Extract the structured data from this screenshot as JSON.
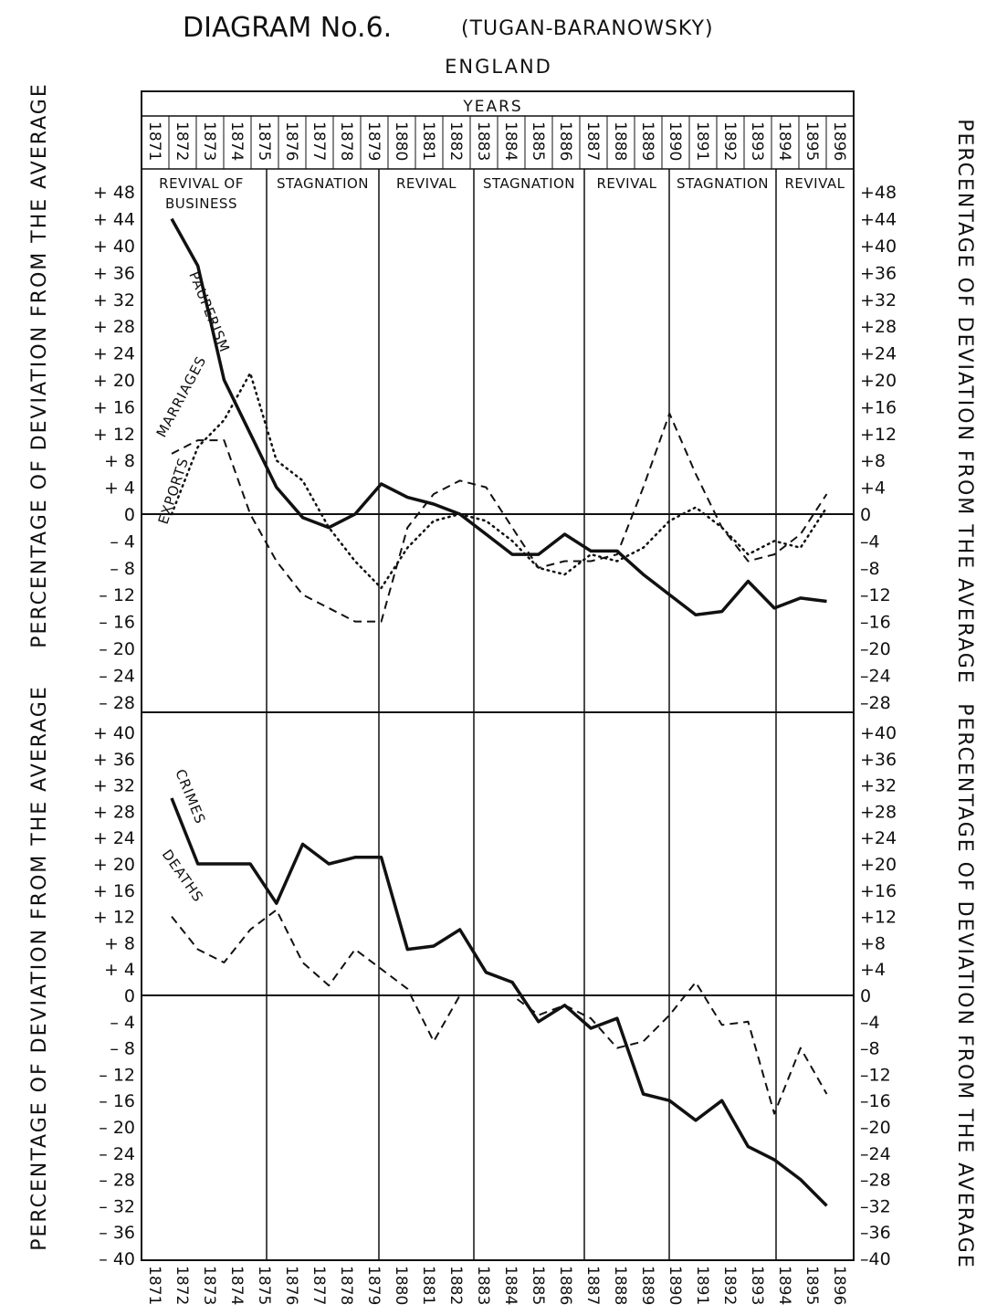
{
  "chart_data": [
    {
      "type": "line",
      "title": "DIAGRAM No.6.",
      "subtitle_author": "(TUGAN-BARANOWSKY)",
      "subtitle": "ENGLAND",
      "x_header": "YEARS",
      "ylabel_left": "PERCENTAGE OF DEVIATION FROM THE AVERAGE",
      "ylabel_right": "PERCENTAGE OF DEVIATION FROM THE AVERAGE",
      "ylim": [
        -28,
        48
      ],
      "yticks": [
        48,
        44,
        40,
        36,
        32,
        28,
        24,
        20,
        16,
        12,
        8,
        4,
        0,
        -4,
        -8,
        -12,
        -16,
        -20,
        -24,
        -28
      ],
      "x": [
        1871,
        1872,
        1873,
        1874,
        1875,
        1876,
        1877,
        1878,
        1879,
        1880,
        1881,
        1882,
        1883,
        1884,
        1885,
        1886,
        1887,
        1888,
        1889,
        1890,
        1891,
        1892,
        1893,
        1894,
        1895,
        1896
      ],
      "periods": [
        {
          "label": "REVIVAL OF BUSINESS",
          "from": 1871,
          "to": 1874
        },
        {
          "label": "STAGNATION",
          "from": 1875,
          "to": 1878
        },
        {
          "label": "REVIVAL",
          "from": 1879,
          "to": 1882
        },
        {
          "label": "STAGNATION",
          "from": 1883,
          "to": 1886
        },
        {
          "label": "REVIVAL",
          "from": 1887,
          "to": 1889
        },
        {
          "label": "STAGNATION",
          "from": 1890,
          "to": 1893
        },
        {
          "label": "REVIVAL",
          "from": 1894,
          "to": 1896
        }
      ],
      "series": [
        {
          "name": "PAUPERISM",
          "style": "solid-thick",
          "values": [
            44,
            37,
            20,
            12,
            4,
            -0.5,
            -2,
            0,
            4.5,
            2.5,
            1.5,
            0,
            -3,
            -6,
            -6,
            -3,
            -5.5,
            -5.5,
            -9,
            -12,
            -15,
            -14.5,
            -10,
            -14,
            -12.5,
            -13
          ]
        },
        {
          "name": "MARRIAGES",
          "style": "dotted",
          "values": [
            0,
            10,
            14,
            21,
            8,
            5,
            -2,
            -7,
            -11,
            -5,
            -1,
            0,
            -1,
            -4,
            -8,
            -9,
            -6,
            -7,
            -5,
            -1,
            1,
            -2,
            -6,
            -4,
            -5,
            1
          ]
        },
        {
          "name": "EXPORTS",
          "style": "dashed",
          "values": [
            9,
            11,
            11,
            0,
            -7,
            -12,
            -14,
            -16,
            -16,
            -2,
            3,
            5,
            4,
            -2,
            -8,
            -7,
            -7,
            -6,
            4,
            15,
            6,
            -2,
            -7,
            -6,
            -3,
            3
          ]
        }
      ]
    },
    {
      "type": "line",
      "ylabel_left": "PERCENTAGE OF DEVIATION FROM THE AVERAGE",
      "ylabel_right": "PERCENTAGE OF DEVIATION FROM THE AVERAGE",
      "ylim": [
        -40,
        40
      ],
      "yticks": [
        40,
        36,
        32,
        28,
        24,
        20,
        16,
        12,
        8,
        4,
        0,
        -4,
        -8,
        -12,
        -16,
        -20,
        -24,
        -28,
        -32,
        -36,
        -40
      ],
      "x": [
        1871,
        1872,
        1873,
        1874,
        1875,
        1876,
        1877,
        1878,
        1879,
        1880,
        1881,
        1882,
        1883,
        1884,
        1885,
        1886,
        1887,
        1888,
        1889,
        1890,
        1891,
        1892,
        1893,
        1894,
        1895,
        1896
      ],
      "series": [
        {
          "name": "CRIMES",
          "style": "solid-thick",
          "values": [
            30,
            20,
            20,
            20,
            14,
            23,
            20,
            21,
            21,
            7,
            7.5,
            10,
            3.5,
            2,
            -4,
            -1.5,
            -5,
            -3.5,
            -15,
            -16,
            -19,
            -16,
            -23,
            -25,
            -28,
            -32
          ]
        },
        {
          "name": "DEATHS",
          "style": "dashed",
          "values": [
            12,
            7,
            5,
            10,
            13,
            5,
            1.5,
            7,
            4,
            1,
            -7,
            0,
            0,
            0,
            -3,
            -1.5,
            -3.5,
            -8,
            -7,
            -3,
            2,
            -4.5,
            -4,
            -18,
            -8,
            -15
          ]
        }
      ]
    }
  ]
}
